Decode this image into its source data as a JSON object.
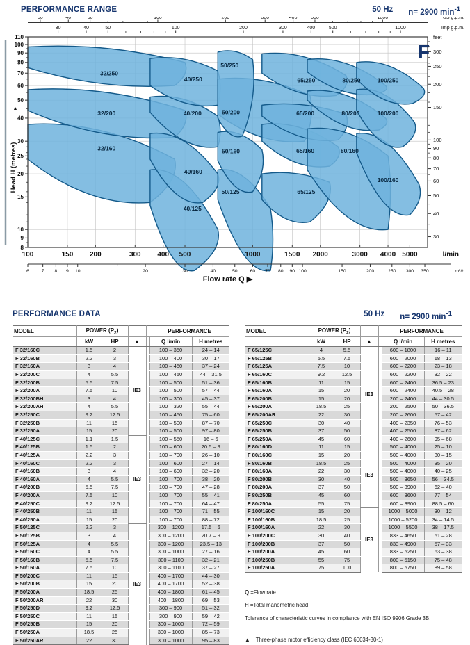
{
  "page": {
    "range_title": "PERFORMANCE RANGE",
    "data_title": "PERFORMANCE DATA",
    "freq_label": "50 Hz",
    "speed_label": "n= 2900 min",
    "speed_exp": "-1"
  },
  "colors": {
    "accent_navy": "#16356e",
    "region_fill": "#6fb3dd",
    "region_stroke": "#145a8a",
    "row_dark": "#d9d9d9",
    "row_light": "#f1f1f1",
    "grid": "#c2c2c2"
  },
  "chart_data": {
    "type": "area",
    "family_letter": "F",
    "xlabel": "Flow rate Q",
    "x_arrow": "▶",
    "ylabel": "Head H (metres)",
    "y_arrow": "▲",
    "x_log": true,
    "y_log": true,
    "xlim_lmin": [
      100,
      6000
    ],
    "ylim_m": [
      8,
      110
    ],
    "axis_us": {
      "unit": "US g.p.m.",
      "ticks": [
        30,
        40,
        50,
        100,
        200,
        300,
        400,
        500,
        1000
      ],
      "minor": [
        60,
        70,
        80,
        90,
        600,
        700,
        800,
        900
      ]
    },
    "axis_imp": {
      "unit": "Imp g.p.m.",
      "ticks": [
        30,
        40,
        50,
        100,
        200,
        300,
        400,
        500,
        1000
      ],
      "minor": [
        60,
        70,
        80,
        90,
        600,
        700,
        800,
        900
      ]
    },
    "axis_lmin": {
      "unit": "l/min",
      "ticks": [
        100,
        150,
        200,
        300,
        400,
        500,
        1000,
        1500,
        2000,
        3000,
        4000,
        5000
      ]
    },
    "axis_m3h": {
      "unit": "m³/h",
      "ticks": [
        6,
        7,
        8,
        9,
        10,
        20,
        30,
        40,
        50,
        60,
        70,
        80,
        90,
        100,
        150,
        200,
        250,
        300,
        350
      ],
      "minor": [
        15
      ]
    },
    "axis_m": {
      "unit": "metres",
      "ticks": [
        110,
        100,
        90,
        80,
        70,
        60,
        50,
        40,
        30,
        25,
        20,
        15,
        10,
        9,
        8
      ],
      "minor": [
        95,
        85,
        75,
        65,
        55,
        45,
        35,
        28,
        26,
        24,
        22,
        18,
        16,
        14,
        12,
        11,
        8.5
      ]
    },
    "axis_feet": {
      "unit": "feet",
      "ticks": [
        300,
        250,
        200,
        150,
        100,
        90,
        80,
        70,
        60,
        50,
        40,
        30
      ],
      "minor": [
        340,
        320,
        280,
        260,
        240,
        220,
        180,
        160,
        140,
        120,
        110,
        95,
        85,
        75,
        65,
        55,
        45,
        35
      ]
    },
    "grid_q": [
      150,
      200,
      300,
      400,
      500,
      1000,
      1500,
      2000,
      3000,
      4000,
      5000
    ],
    "grid_h": [
      10,
      15,
      20,
      25,
      30,
      40,
      50,
      60,
      70,
      80,
      90,
      100
    ],
    "regions": [
      {
        "label": "32/160",
        "q": [
          100,
          450,
          350,
          100
        ],
        "h": [
          37,
          24,
          14,
          24
        ],
        "at": [
          224,
          27.5
        ]
      },
      {
        "label": "32/200",
        "q": [
          100,
          500,
          450,
          100
        ],
        "h": [
          57,
          44,
          31.5,
          44
        ],
        "at": [
          224,
          42.5
        ]
      },
      {
        "label": "32/250",
        "q": [
          100,
          500,
          450,
          100
        ],
        "h": [
          97,
          80,
          60,
          75
        ],
        "at": [
          230,
          70
        ]
      },
      {
        "label": "40/125",
        "q": [
          350,
          700,
          550,
          350
        ],
        "h": [
          21,
          10,
          6,
          13.5
        ],
        "at": [
          540,
          13
        ]
      },
      {
        "label": "40/160",
        "q": [
          350,
          700,
          600,
          350
        ],
        "h": [
          33,
          20,
          14,
          24
        ],
        "at": [
          544,
          20.5
        ]
      },
      {
        "label": "40/200",
        "q": [
          350,
          700,
          700,
          350
        ],
        "h": [
          52,
          41,
          28,
          43
        ],
        "at": [
          540,
          42.5
        ]
      },
      {
        "label": "40/250",
        "q": [
          350,
          700,
          700,
          350
        ],
        "h": [
          84,
          72,
          47,
          60
        ],
        "at": [
          544,
          65
        ]
      },
      {
        "label": "50/125",
        "q": [
          700,
          1200,
          1200,
          700
        ],
        "h": [
          21,
          13,
          6,
          14.5
        ],
        "at": [
          797,
          16
        ]
      },
      {
        "label": "50/160",
        "q": [
          700,
          1100,
          1000,
          700
        ],
        "h": [
          33.5,
          27,
          16,
          23.5
        ],
        "at": [
          800,
          26.5
        ]
      },
      {
        "label": "50/200",
        "q": [
          700,
          1800,
          1700,
          700
        ],
        "h": [
          65,
          53,
          30,
          42
        ],
        "at": [
          800,
          43
        ]
      },
      {
        "label": "50/250",
        "q": [
          700,
          1000,
          900,
          700
        ],
        "h": [
          91,
          83,
          32,
          40
        ],
        "at": [
          790,
          77
        ]
      },
      {
        "label": "65/125",
        "q": [
          1100,
          2200,
          1800,
          1100
        ],
        "h": [
          20,
          18,
          11,
          14.5
        ],
        "at": [
          1730,
          16
        ]
      },
      {
        "label": "65/160",
        "q": [
          1100,
          2400,
          2200,
          1100
        ],
        "h": [
          37,
          28,
          22,
          30
        ],
        "at": [
          1715,
          26.6
        ]
      },
      {
        "label": "65/200",
        "q": [
          1100,
          2600,
          2400,
          1100
        ],
        "h": [
          47,
          42,
          30.5,
          41
        ],
        "at": [
          1715,
          42.5
        ]
      },
      {
        "label": "65/250",
        "q": [
          1100,
          2600,
          2350,
          1100
        ],
        "h": [
          89,
          68,
          53,
          70
        ],
        "at": [
          1730,
          64
        ]
      },
      {
        "label": "80/160",
        "q": [
          1750,
          4000,
          4000,
          1750
        ],
        "h": [
          35,
          25,
          10,
          21
        ],
        "at": [
          2700,
          26.6
        ]
      },
      {
        "label": "80/200",
        "q": [
          1750,
          3900,
          3650,
          1750
        ],
        "h": [
          56,
          40,
          34.5,
          50
        ],
        "at": [
          2730,
          42.5
        ]
      },
      {
        "label": "80/250",
        "q": [
          1750,
          3900,
          3600,
          1750
        ],
        "h": [
          83,
          60,
          54,
          71
        ],
        "at": [
          2750,
          64
        ]
      },
      {
        "label": "100/160",
        "q": [
          2900,
          5500,
          5000,
          2900
        ],
        "h": [
          33,
          17.5,
          12,
          26
        ],
        "at": [
          4000,
          18.5
        ]
      },
      {
        "label": "100/200",
        "q": [
          2900,
          5250,
          4650,
          2900
        ],
        "h": [
          57,
          38,
          28,
          44
        ],
        "at": [
          4000,
          42.5
        ]
      },
      {
        "label": "100/250",
        "q": [
          2900,
          5750,
          5150,
          2900
        ],
        "h": [
          80,
          58,
          48,
          65
        ],
        "at": [
          4000,
          64
        ]
      }
    ]
  },
  "tables": {
    "header": {
      "model": "MODEL",
      "power_prefix": "POWER (P",
      "power_sub": "2",
      "power_suffix": ")",
      "kw": "kW",
      "hp": "HP",
      "class_symbol": "▲",
      "performance": "PERFORMANCE",
      "q_key": "Q",
      "q_unit": " l/min",
      "h_key": "H",
      "h_unit": " metres"
    },
    "left_groups": [
      {
        "ie": "IE3",
        "rows": [
          [
            "F 32/160C",
            "1.5",
            "2",
            "100 – 350",
            "24 – 14"
          ],
          [
            "F 32/160B",
            "2.2",
            "3",
            "100 – 400",
            "30 – 17"
          ],
          [
            "F 32/160A",
            "3",
            "4",
            "100 – 450",
            "37 – 24"
          ],
          [
            "F 32/200C",
            "4",
            "5.5",
            "100 – 450",
            "44 – 31.5"
          ],
          [
            "F 32/200B",
            "5.5",
            "7.5",
            "100 – 500",
            "51 – 36"
          ],
          [
            "F 32/200A",
            "7.5",
            "10",
            "100 – 500",
            "57 – 44"
          ],
          [
            "F 32/200BH",
            "3",
            "4",
            "100 – 300",
            "45 – 37"
          ],
          [
            "F 32/200AH",
            "4",
            "5.5",
            "100 – 320",
            "55 – 44"
          ],
          [
            "F 32/250C",
            "9.2",
            "12.5",
            "100 – 450",
            "75 – 60"
          ],
          [
            "F 32/250B",
            "11",
            "15",
            "100 – 500",
            "87 – 70"
          ],
          [
            "F 32/250A",
            "15",
            "20",
            "100 – 500",
            "97 – 80"
          ]
        ]
      },
      {
        "ie": "IE3",
        "rows": [
          [
            "F 40/125C",
            "1.1",
            "1.5",
            "100 – 550",
            "16 – 6"
          ],
          [
            "F 40/125B",
            "1.5",
            "2",
            "100 – 600",
            "20.5 – 9"
          ],
          [
            "F 40/125A",
            "2.2",
            "3",
            "100 – 700",
            "26 – 10"
          ],
          [
            "F 40/160C",
            "2.2",
            "3",
            "100 – 600",
            "27 – 14"
          ],
          [
            "F 40/160B",
            "3",
            "4",
            "100 – 600",
            "32 – 20"
          ],
          [
            "F 40/160A",
            "4",
            "5.5",
            "100 – 700",
            "38 – 20"
          ],
          [
            "F 40/200B",
            "5.5",
            "7.5",
            "100 – 700",
            "47 – 28"
          ],
          [
            "F 40/200A",
            "7.5",
            "10",
            "100 – 700",
            "55 – 41"
          ],
          [
            "F 40/250C",
            "9.2",
            "12.5",
            "100 – 700",
            "64 – 47"
          ],
          [
            "F 40/250B",
            "11",
            "15",
            "100 – 700",
            "71 – 55"
          ],
          [
            "F 40/250A",
            "15",
            "20",
            "100 – 700",
            "88 – 72"
          ]
        ]
      },
      {
        "ie": "IE3",
        "rows": [
          [
            "F 50/125C",
            "2.2",
            "3",
            "300 – 1200",
            "17.5 – 6"
          ],
          [
            "F 50/125B",
            "3",
            "4",
            "300 – 1200",
            "20.7 – 9"
          ],
          [
            "F 50/125A",
            "4",
            "5.5",
            "300 – 1200",
            "23.5 – 13"
          ],
          [
            "F 50/160C",
            "4",
            "5.5",
            "300 – 1000",
            "27 – 16"
          ],
          [
            "F 50/160B",
            "5.5",
            "7.5",
            "300 – 1100",
            "32 – 21"
          ],
          [
            "F 50/160A",
            "7.5",
            "10",
            "300 – 1100",
            "37 – 27"
          ],
          [
            "F 50/200C",
            "11",
            "15",
            "400 – 1700",
            "44 – 30"
          ],
          [
            "F 50/200B",
            "15",
            "20",
            "400 – 1700",
            "52 – 38"
          ],
          [
            "F 50/200A",
            "18.5",
            "25",
            "400 – 1800",
            "61 – 45"
          ],
          [
            "F 50/200AR",
            "22",
            "30",
            "400 – 1800",
            "69 – 53"
          ],
          [
            "F 50/250D",
            "9.2",
            "12.5",
            "300 – 900",
            "51 – 32"
          ],
          [
            "F 50/250C",
            "11",
            "15",
            "300 – 900",
            "59 – 42"
          ],
          [
            "F 50/250B",
            "15",
            "20",
            "300 – 1000",
            "72 – 59"
          ],
          [
            "F 50/250A",
            "18.5",
            "25",
            "300 – 1000",
            "85 – 73"
          ],
          [
            "F 50/250AR",
            "22",
            "30",
            "300 – 1000",
            "95 – 83"
          ]
        ]
      }
    ],
    "right_groups": [
      {
        "ie": "IE3",
        "rows": [
          [
            "F 65/125C",
            "4",
            "5.5",
            "600 – 1800",
            "16 – 11"
          ],
          [
            "F 65/125B",
            "5.5",
            "7.5",
            "600 – 2000",
            "18 – 13"
          ],
          [
            "F 65/125A",
            "7.5",
            "10",
            "600 – 2200",
            "23 – 18"
          ],
          [
            "F 65/160C",
            "9.2",
            "12.5",
            "600 – 2200",
            "32 – 22"
          ],
          [
            "F 65/160B",
            "11",
            "15",
            "600 – 2400",
            "36.5 – 23"
          ],
          [
            "F 65/160A",
            "15",
            "20",
            "600 – 2400",
            "40.5 – 28"
          ],
          [
            "F 65/200B",
            "15",
            "20",
            "200 – 2400",
            "44 – 30.5"
          ],
          [
            "F 65/200A",
            "18.5",
            "25",
            "200 – 2500",
            "50 – 36.5"
          ],
          [
            "F 65/200AR",
            "22",
            "30",
            "200 – 2600",
            "57 – 42"
          ],
          [
            "F 65/250C",
            "30",
            "40",
            "400 – 2350",
            "76 – 53"
          ],
          [
            "F 65/250B",
            "37",
            "50",
            "400 – 2500",
            "87 – 62"
          ],
          [
            "F 65/250A",
            "45",
            "60",
            "400 – 2600",
            "95 – 68"
          ]
        ]
      },
      {
        "ie": "IE3",
        "rows": [
          [
            "F 80/160D",
            "11",
            "15",
            "500 – 4000",
            "25 – 10"
          ],
          [
            "F 80/160C",
            "15",
            "20",
            "500 – 4000",
            "30 – 15"
          ],
          [
            "F 80/160B",
            "18.5",
            "25",
            "500 – 4000",
            "35 – 20"
          ],
          [
            "F 80/160A",
            "22",
            "30",
            "500 – 4000",
            "40 – 25"
          ],
          [
            "F 80/200B",
            "30",
            "40",
            "500 – 3650",
            "56 – 34.5"
          ],
          [
            "F 80/200A",
            "37",
            "50",
            "500 – 3900",
            "62 – 40"
          ],
          [
            "F 80/250B",
            "45",
            "60",
            "600 – 3600",
            "77 – 54"
          ],
          [
            "F 80/250A",
            "55",
            "75",
            "600 – 3900",
            "88.5 – 60"
          ]
        ]
      },
      {
        "ie": "IE3",
        "rows": [
          [
            "F 100/160C",
            "15",
            "20",
            "1000 – 5000",
            "30 – 12"
          ],
          [
            "F 100/160B",
            "18.5",
            "25",
            "1000 – 5200",
            "34 – 14.5"
          ],
          [
            "F 100/160A",
            "22",
            "30",
            "1000 – 5500",
            "38 – 17.5"
          ],
          [
            "F 100/200C",
            "30",
            "40",
            "833 – 4650",
            "51 – 28"
          ],
          [
            "F 100/200B",
            "37",
            "50",
            "833 – 4900",
            "57 – 33"
          ],
          [
            "F 100/200A",
            "45",
            "60",
            "833 – 5250",
            "63 – 38"
          ],
          [
            "F 100/250B",
            "55",
            "75",
            "800 – 5150",
            "75 – 48"
          ],
          [
            "F 100/250A",
            "75",
            "100",
            "800 – 5750",
            "89 – 58"
          ]
        ]
      }
    ]
  },
  "footnotes": {
    "q_key": "Q",
    "q_text": "=Flow rate",
    "h_key": "H",
    "h_text": "=Total manometric head",
    "tolerance": "Tolerance of characteristic curves in compliance with EN ISO 9906 Grade 3B.",
    "class_symbol": "▲",
    "class_text": "Three-phase motor efficiency class (IEC 60034-30-1)"
  }
}
